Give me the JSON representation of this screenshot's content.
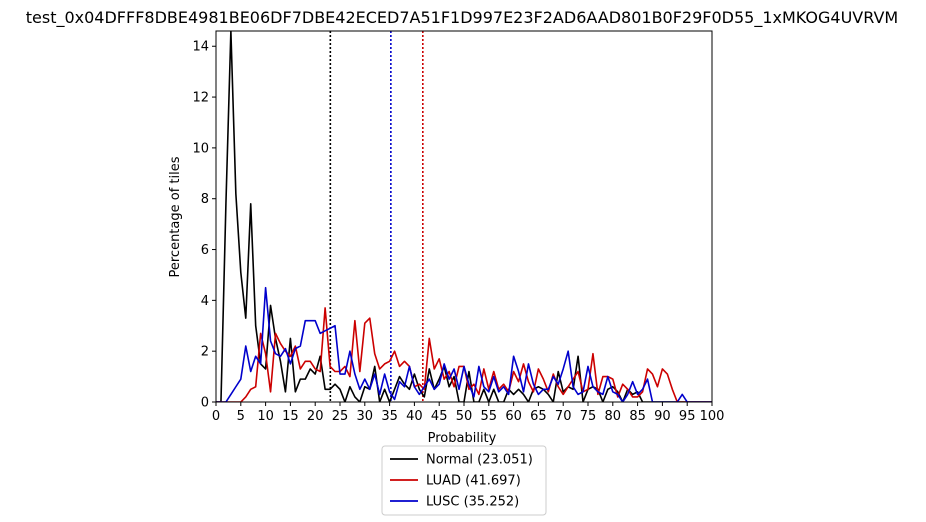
{
  "chart_data": {
    "type": "line",
    "title": "test_0x04DFFF8DBE4981BE06DF7DBE42ECED7A51F1D997E23F2AD6AAD801B0F29F0D55_1xMKOG4UVRVM",
    "xlabel": "Probability",
    "ylabel": "Percentage of tiles",
    "xlim": [
      0,
      100
    ],
    "ylim": [
      0,
      14.6
    ],
    "xticks": [
      0,
      5,
      10,
      15,
      20,
      25,
      30,
      35,
      40,
      45,
      50,
      55,
      60,
      65,
      70,
      75,
      80,
      85,
      90,
      95,
      100
    ],
    "yticks": [
      0,
      2,
      4,
      6,
      8,
      10,
      12,
      14
    ],
    "grid": false,
    "legend_position": "bottom-center",
    "thresholds": [
      {
        "series": "Normal",
        "x": 23.051,
        "color": "#000000"
      },
      {
        "series": "LUAD",
        "x": 41.697,
        "color": "#cc0000"
      },
      {
        "series": "LUSC",
        "x": 35.252,
        "color": "#0000cc"
      }
    ],
    "series": [
      {
        "name": "Normal",
        "legend": "Normal (23.051)",
        "color": "#000000",
        "x": [
          0,
          1,
          2,
          3,
          4,
          5,
          6,
          7,
          8,
          9,
          10,
          11,
          12,
          13,
          14,
          15,
          16,
          17,
          18,
          19,
          20,
          21,
          22,
          23,
          24,
          25,
          26,
          27,
          28,
          29,
          30,
          31,
          32,
          33,
          34,
          35,
          36,
          37,
          38,
          39,
          40,
          41,
          42,
          43,
          44,
          45,
          46,
          47,
          48,
          49,
          50,
          51,
          52,
          53,
          54,
          55,
          56,
          57,
          58,
          59,
          60,
          61,
          62,
          63,
          64,
          65,
          66,
          67,
          68,
          69,
          70,
          71,
          72,
          73,
          74,
          75,
          76,
          77,
          78,
          79,
          80,
          81,
          82,
          83,
          84,
          85,
          86,
          87,
          88,
          89,
          90,
          91,
          92,
          93,
          94,
          95,
          96,
          97,
          98,
          99,
          100
        ],
        "y": [
          0,
          0,
          7.8,
          14.6,
          8.2,
          5.1,
          3.3,
          7.8,
          3.0,
          1.5,
          1.3,
          3.8,
          2.5,
          1.6,
          0.4,
          2.5,
          0.4,
          0.9,
          0.9,
          1.3,
          1.1,
          1.8,
          0.5,
          0.5,
          0.7,
          0.5,
          0,
          0.6,
          0.2,
          0,
          0.6,
          0.5,
          1.4,
          0,
          0.5,
          0,
          0.5,
          1.0,
          0.7,
          0.5,
          1.1,
          0.5,
          0.2,
          1.3,
          0.5,
          0.9,
          1.4,
          0.6,
          1.0,
          0,
          0,
          1.2,
          0,
          0,
          0.5,
          0,
          0.5,
          0,
          0,
          0.5,
          0.3,
          0.5,
          0.3,
          0,
          0.5,
          0.6,
          0.5,
          0.3,
          0,
          1.2,
          0.4,
          0.6,
          0.5,
          1.8,
          0,
          0.5,
          0.6,
          0.5,
          0,
          0.5,
          0.6,
          0.4,
          0,
          0.5,
          0.3,
          0.4,
          0,
          0,
          0,
          0,
          0,
          0,
          0,
          0,
          0,
          0,
          0,
          0,
          0,
          0,
          0
        ]
      },
      {
        "name": "LUAD",
        "legend": "LUAD (41.697)",
        "color": "#cc0000",
        "x": [
          0,
          1,
          2,
          3,
          4,
          5,
          6,
          7,
          8,
          9,
          10,
          11,
          12,
          13,
          14,
          15,
          16,
          17,
          18,
          19,
          20,
          21,
          22,
          23,
          24,
          25,
          26,
          27,
          28,
          29,
          30,
          31,
          32,
          33,
          34,
          35,
          36,
          37,
          38,
          39,
          40,
          41,
          42,
          43,
          44,
          45,
          46,
          47,
          48,
          49,
          50,
          51,
          52,
          53,
          54,
          55,
          56,
          57,
          58,
          59,
          60,
          61,
          62,
          63,
          64,
          65,
          66,
          67,
          68,
          69,
          70,
          71,
          72,
          73,
          74,
          75,
          76,
          77,
          78,
          79,
          80,
          81,
          82,
          83,
          84,
          85,
          86,
          87,
          88,
          89,
          90,
          91,
          92,
          93,
          94,
          95,
          96,
          97,
          98,
          99,
          100
        ],
        "y": [
          0,
          0,
          0,
          0,
          0,
          0,
          0.2,
          0.5,
          0.6,
          2.7,
          1.9,
          0.4,
          2.7,
          2.3,
          2.0,
          1.8,
          2.2,
          1.3,
          1.6,
          1.6,
          1.3,
          1.2,
          3.7,
          1.4,
          1.2,
          1.2,
          1.4,
          1.0,
          3.2,
          1.2,
          3.1,
          3.3,
          1.9,
          1.3,
          1.5,
          1.6,
          2.0,
          1.4,
          1.6,
          1.4,
          0.6,
          0.7,
          0.5,
          2.5,
          1.3,
          1.7,
          0.9,
          1.2,
          0.6,
          1.4,
          1.4,
          0.5,
          0.7,
          0.3,
          1.3,
          0.5,
          1.2,
          0.5,
          0.7,
          0.4,
          1.2,
          0.8,
          1.5,
          0.8,
          0.4,
          1.3,
          0.9,
          0.4,
          1.1,
          0.6,
          0.3,
          0.6,
          0.9,
          1.2,
          0.4,
          0.5,
          1.9,
          0.3,
          1.0,
          1.0,
          0.9,
          0.2,
          0.7,
          0.5,
          0.2,
          0.2,
          0.4,
          1.3,
          1.1,
          0.6,
          1.3,
          1.1,
          0.5,
          0,
          0,
          0,
          0,
          0,
          0,
          0,
          0
        ]
      },
      {
        "name": "LUSC",
        "legend": "LUSC (35.252)",
        "color": "#0000cc",
        "x": [
          0,
          1,
          2,
          3,
          4,
          5,
          6,
          7,
          8,
          9,
          10,
          11,
          12,
          13,
          14,
          15,
          16,
          17,
          18,
          19,
          20,
          21,
          22,
          23,
          24,
          25,
          26,
          27,
          28,
          29,
          30,
          31,
          32,
          33,
          34,
          35,
          36,
          37,
          38,
          39,
          40,
          41,
          42,
          43,
          44,
          45,
          46,
          47,
          48,
          49,
          50,
          51,
          52,
          53,
          54,
          55,
          56,
          57,
          58,
          59,
          60,
          61,
          62,
          63,
          64,
          65,
          66,
          67,
          68,
          69,
          70,
          71,
          72,
          73,
          74,
          75,
          76,
          77,
          78,
          79,
          80,
          81,
          82,
          83,
          84,
          85,
          86,
          87,
          88,
          89,
          90,
          91,
          92,
          93,
          94,
          95,
          96,
          97,
          98,
          99,
          100
        ],
        "y": [
          0,
          0,
          0,
          0.3,
          0.6,
          0.9,
          2.2,
          1.2,
          1.8,
          1.5,
          4.5,
          2.4,
          1.9,
          1.8,
          2.1,
          1.5,
          2.1,
          2.2,
          3.2,
          3.2,
          3.2,
          2.7,
          2.8,
          2.9,
          3.0,
          1.1,
          1.1,
          2.0,
          1.1,
          0.5,
          0.9,
          0.5,
          1.1,
          0.3,
          1.1,
          0.4,
          0.1,
          0.8,
          0.6,
          1.4,
          0.6,
          0.3,
          0.6,
          0.9,
          0.5,
          0.7,
          1.5,
          0.9,
          1.3,
          0.5,
          1.4,
          0.7,
          0.2,
          1.4,
          0.6,
          0.4,
          1.0,
          0.4,
          0.6,
          0.3,
          1.8,
          1.2,
          0.4,
          1.5,
          0.7,
          0.3,
          0.5,
          0.5,
          1.0,
          0.7,
          1.3,
          2.0,
          0.6,
          0.3,
          0.4,
          1.4,
          0.6,
          0.4,
          0.3,
          1.0,
          0.4,
          0.3,
          0,
          0.3,
          0.8,
          0.3,
          0.5,
          0.9,
          0,
          0,
          0,
          0,
          0,
          0,
          0.3,
          0,
          0,
          0,
          0,
          0,
          0
        ]
      }
    ]
  }
}
